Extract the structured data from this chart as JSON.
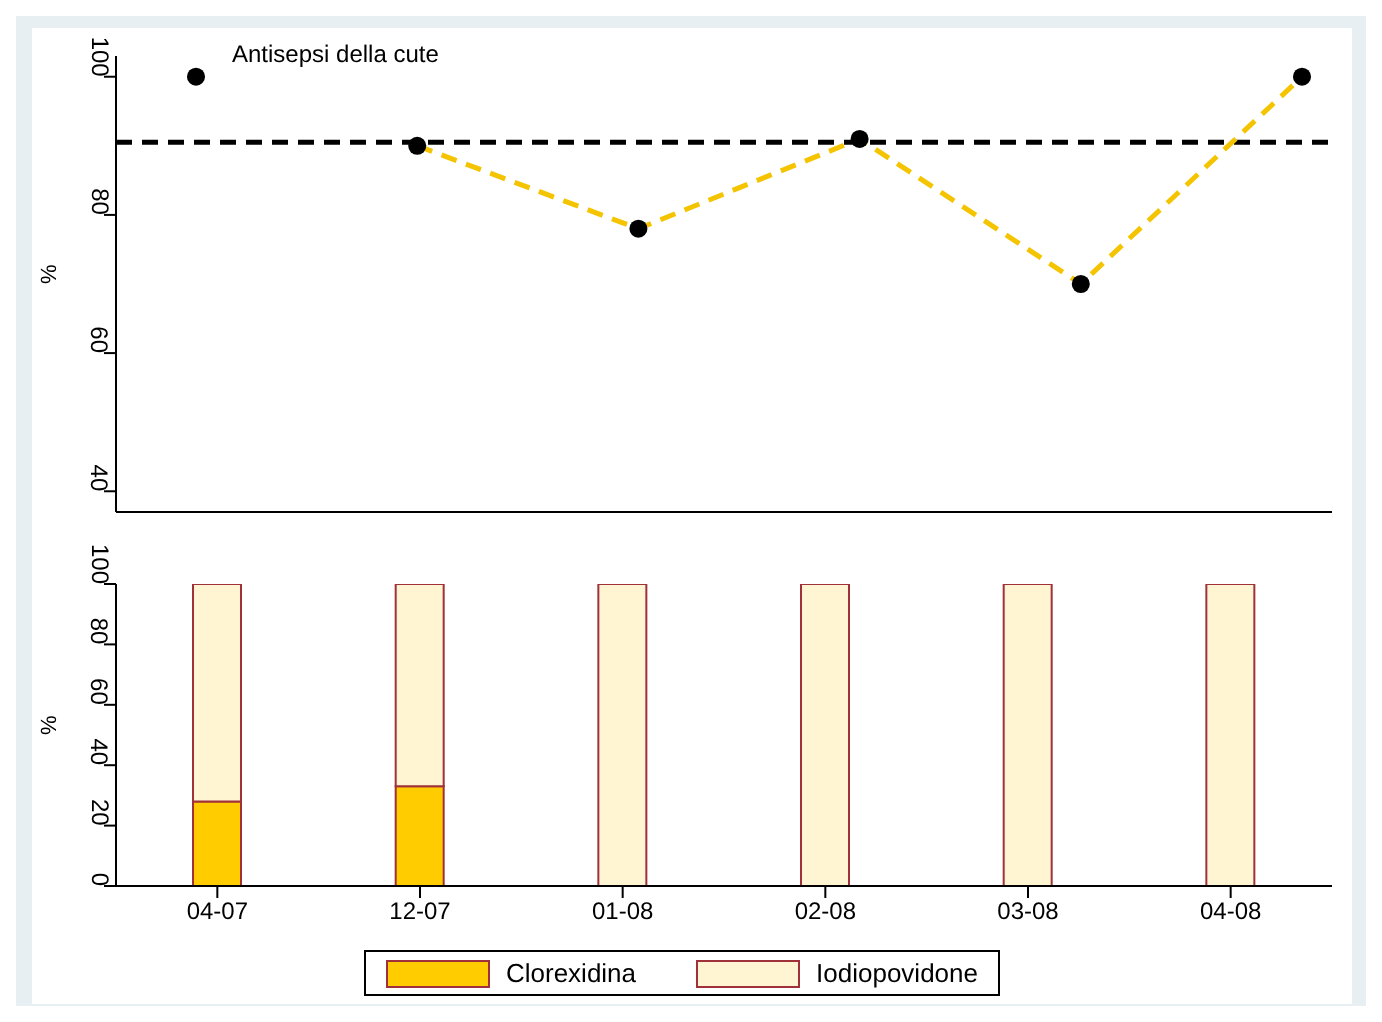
{
  "chart_data": [
    {
      "type": "line",
      "annotations": [
        "Antisepsi della cute"
      ],
      "ylabel": "%",
      "categories": [
        null,
        null,
        null,
        null,
        null,
        null
      ],
      "ylim": [
        37,
        103
      ],
      "yticks": [
        40,
        60,
        80,
        100
      ],
      "tick_labels": "y",
      "legend": false,
      "series": [
        {
          "type": "scatter",
          "color": "#000000",
          "marker": "circle",
          "values": [
            100,
            90,
            78,
            91,
            70,
            100
          ]
        },
        {
          "type": "line",
          "color": "#f5c400",
          "line_style": "dashed",
          "values": [
            null,
            90,
            78,
            91,
            70,
            100
          ]
        }
      ],
      "ref_lines": [
        {
          "axis": "y",
          "value": 90.5,
          "color": "#000000",
          "line_style": "dashed"
        }
      ]
    },
    {
      "type": "bar",
      "stacked": true,
      "ylabel": "%",
      "categories": [
        "04-07",
        "12-07",
        "01-08",
        "02-08",
        "03-08",
        "04-08"
      ],
      "ylim": [
        0,
        100
      ],
      "yticks": [
        0,
        20,
        40,
        60,
        80,
        100
      ],
      "legend": "bottom",
      "series": [
        {
          "name": "Clorexidina",
          "color": "#ffcc00",
          "values": [
            28,
            33,
            0,
            0,
            0,
            0
          ]
        },
        {
          "name": "Iodiopovidone",
          "color": "#fff5d2",
          "values": [
            72,
            67,
            100,
            100,
            100,
            100
          ]
        }
      ]
    }
  ]
}
